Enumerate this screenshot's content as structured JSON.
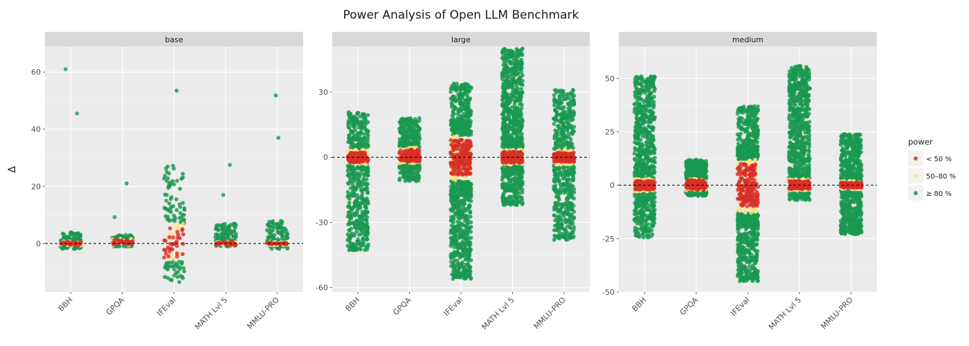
{
  "chart_data": {
    "type": "scatter",
    "title": "Power Analysis of Open LLM Benchmark",
    "ylabel": "Δ",
    "xlabel": "",
    "categories": [
      "BBH",
      "GPQA",
      "IFEval",
      "MATH Lvl 5",
      "MMLU-PRO"
    ],
    "legend": {
      "title": "power",
      "position": "right",
      "entries": [
        {
          "label": "< 50 %",
          "color": "#d73027"
        },
        {
          "label": "50–80 %",
          "color": "#fee08b"
        },
        {
          "label": "≥ 80 %",
          "color": "#1a9850"
        }
      ]
    },
    "panels": [
      {
        "label": "base",
        "ylim": [
          -17,
          69
        ],
        "yticks": [
          0,
          20,
          40,
          60
        ],
        "distributions": [
          {
            "category": "BBH",
            "n_points": 90,
            "green_range": [
              -2,
              4
            ],
            "yellow_band": [
              -0.9,
              0.9
            ],
            "red_band": [
              -0.6,
              0.6
            ],
            "outliers": [
              {
                "x": -0.1,
                "y": 61
              },
              {
                "x": 0.12,
                "y": 45.5
              }
            ]
          },
          {
            "category": "GPQA",
            "n_points": 90,
            "green_range": [
              -1,
              3
            ],
            "yellow_band": [
              -0.8,
              1.8
            ],
            "red_band": [
              -0.4,
              1.2
            ],
            "outliers": [
              {
                "x": -0.15,
                "y": 9.2
              },
              {
                "x": 0.08,
                "y": 21
              }
            ]
          },
          {
            "category": "IFEval",
            "n_points": 100,
            "green_range": [
              -13,
              27
            ],
            "yellow_band": [
              -6,
              7
            ],
            "red_band": [
              -5,
              6
            ],
            "outliers": [
              {
                "x": -0.12,
                "y": 22.8
              },
              {
                "x": 0.05,
                "y": 53.5
              },
              {
                "x": -0.02,
                "y": 27.2
              },
              {
                "x": 0.1,
                "y": -13.5
              }
            ]
          },
          {
            "category": "MATH Lvl 5",
            "n_points": 90,
            "green_range": [
              -1,
              7
            ],
            "yellow_band": [
              -0.8,
              0.8
            ],
            "red_band": [
              -0.5,
              0.5
            ],
            "outliers": [
              {
                "x": 0.08,
                "y": 27.5
              },
              {
                "x": -0.05,
                "y": 17
              }
            ]
          },
          {
            "category": "MMLU-PRO",
            "n_points": 90,
            "green_range": [
              -2,
              8
            ],
            "yellow_band": [
              -0.6,
              0.6
            ],
            "red_band": [
              -0.3,
              0.3
            ],
            "outliers": [
              {
                "x": -0.03,
                "y": 51.8
              },
              {
                "x": 0.02,
                "y": 37
              }
            ]
          }
        ]
      },
      {
        "label": "large",
        "ylim": [
          -62,
          51
        ],
        "yticks": [
          -60,
          -30,
          0,
          30
        ],
        "distributions": [
          {
            "category": "BBH",
            "n_points": 500,
            "green_range": [
              -43,
              21
            ],
            "yellow_band": [
              -3.5,
              3.5
            ],
            "red_band": [
              -2.3,
              2.3
            ],
            "outliers": []
          },
          {
            "category": "GPQA",
            "n_points": 420,
            "green_range": [
              -11,
              18
            ],
            "yellow_band": [
              -3,
              4.5
            ],
            "red_band": [
              -2,
              3.5
            ],
            "outliers": []
          },
          {
            "category": "IFEval",
            "n_points": 800,
            "green_range": [
              -56,
              34
            ],
            "yellow_band": [
              -11,
              10
            ],
            "red_band": [
              -8,
              8
            ],
            "outliers": []
          },
          {
            "category": "MATH Lvl 5",
            "n_points": 800,
            "green_range": [
              -22,
              50
            ],
            "yellow_band": [
              -3.5,
              3.5
            ],
            "red_band": [
              -2.5,
              2.5
            ],
            "outliers": []
          },
          {
            "category": "MMLU-PRO",
            "n_points": 500,
            "green_range": [
              -38,
              31
            ],
            "yellow_band": [
              -3.5,
              3.5
            ],
            "red_band": [
              -2.2,
              2.2
            ],
            "outliers": []
          }
        ]
      },
      {
        "label": "medium",
        "ylim": [
          -50,
          65
        ],
        "yticks": [
          -50,
          -25,
          0,
          25,
          50
        ],
        "distributions": [
          {
            "category": "BBH",
            "n_points": 700,
            "green_range": [
              -25,
              51
            ],
            "yellow_band": [
              -3,
              3
            ],
            "red_band": [
              -2,
              2
            ],
            "outliers": []
          },
          {
            "category": "GPQA",
            "n_points": 420,
            "green_range": [
              -5,
              12
            ],
            "yellow_band": [
              -2.5,
              3
            ],
            "red_band": [
              -2,
              2.5
            ],
            "outliers": []
          },
          {
            "category": "IFEval",
            "n_points": 800,
            "green_range": [
              -45,
              37
            ],
            "yellow_band": [
              -13,
              12
            ],
            "red_band": [
              -10,
              10
            ],
            "outliers": []
          },
          {
            "category": "MATH Lvl 5",
            "n_points": 700,
            "green_range": [
              -7,
              56
            ],
            "yellow_band": [
              -2.5,
              3
            ],
            "red_band": [
              -1.8,
              2
            ],
            "outliers": []
          },
          {
            "category": "MMLU-PRO",
            "n_points": 700,
            "green_range": [
              -23,
              24
            ],
            "yellow_band": [
              -2,
              2
            ],
            "red_band": [
              -1.2,
              1.2
            ],
            "outliers": []
          }
        ]
      }
    ]
  }
}
